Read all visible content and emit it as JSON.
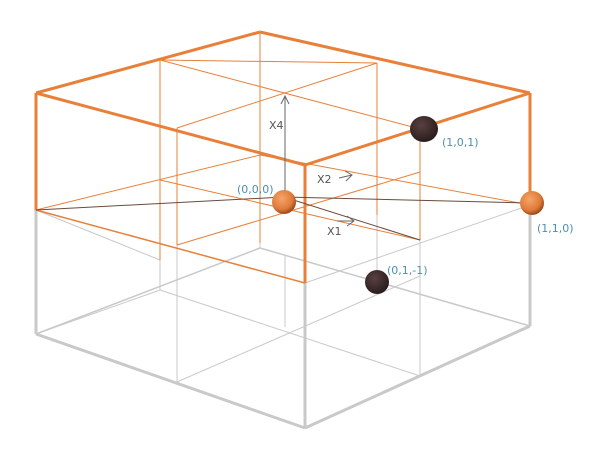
{
  "axes": {
    "x1": "X1",
    "x2": "X2",
    "x4": "X4"
  },
  "points": [
    {
      "label": "(0,0,0)",
      "color": "#e07b39",
      "kind": "sphere"
    },
    {
      "label": "(1,0,1)",
      "color": "#3b2a2a",
      "kind": "blob"
    },
    {
      "label": "(1,1,0)",
      "color": "#e07b39",
      "kind": "sphere"
    },
    {
      "label": "(0,1,-1)",
      "color": "#3b2a2a",
      "kind": "blob"
    }
  ],
  "colors": {
    "upper_cube": "#e8803a",
    "lower_cube": "#c8c8c8",
    "label": "#4b8fb0",
    "axis": "#555555"
  }
}
